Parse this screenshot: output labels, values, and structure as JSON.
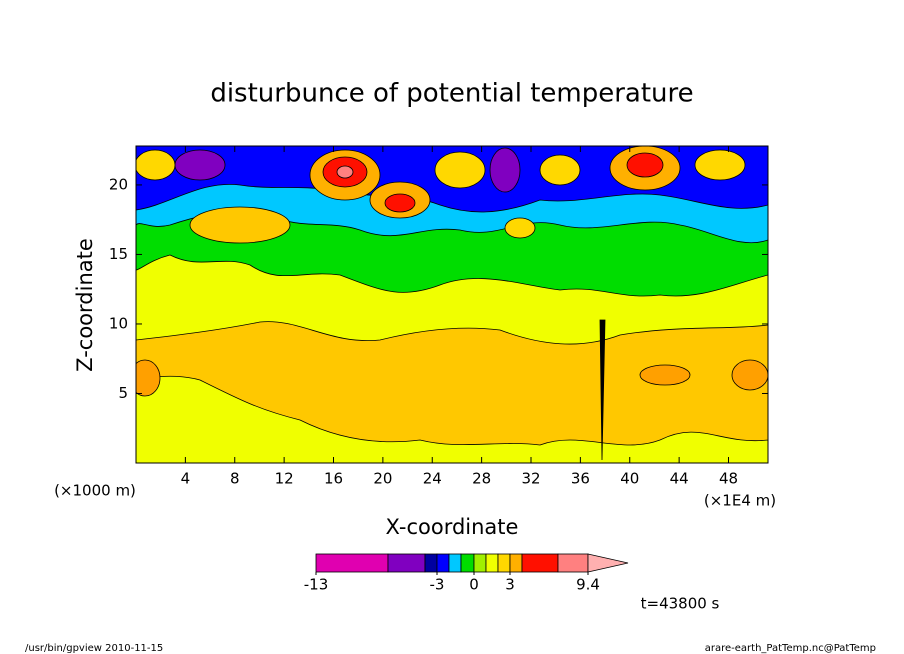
{
  "chart_data": {
    "type": "contour",
    "title": "disturbunce of potential temperature",
    "xlabel": "X-coordinate",
    "ylabel": "Z-coordinate",
    "x_unit": "(×1000 m)",
    "x_scale_note": "(×1E4 m)",
    "xlim": [
      0,
      51.2
    ],
    "xticks": [
      4,
      8,
      12,
      16,
      20,
      24,
      28,
      32,
      36,
      40,
      44,
      48
    ],
    "ylim": [
      0,
      22.8
    ],
    "yticks": [
      5,
      10,
      15,
      20
    ],
    "colorbar": {
      "colors": [
        "#e000b0",
        "#8000c0",
        "#0000a0",
        "#0000ff",
        "#00c8ff",
        "#00dd00",
        "#a0f000",
        "#f0ff00",
        "#ffd800",
        "#ffb000",
        "#ff1000",
        "#ff8080",
        "#ffb0b0"
      ],
      "ticks": [
        -13,
        -3,
        0,
        3,
        9.4
      ]
    },
    "time_label": "t=43800 s",
    "footer_left": "/usr/bin/gpview   2010-11-15",
    "footer_right": "arare-earth_PatTemp.nc@PatTemp"
  }
}
